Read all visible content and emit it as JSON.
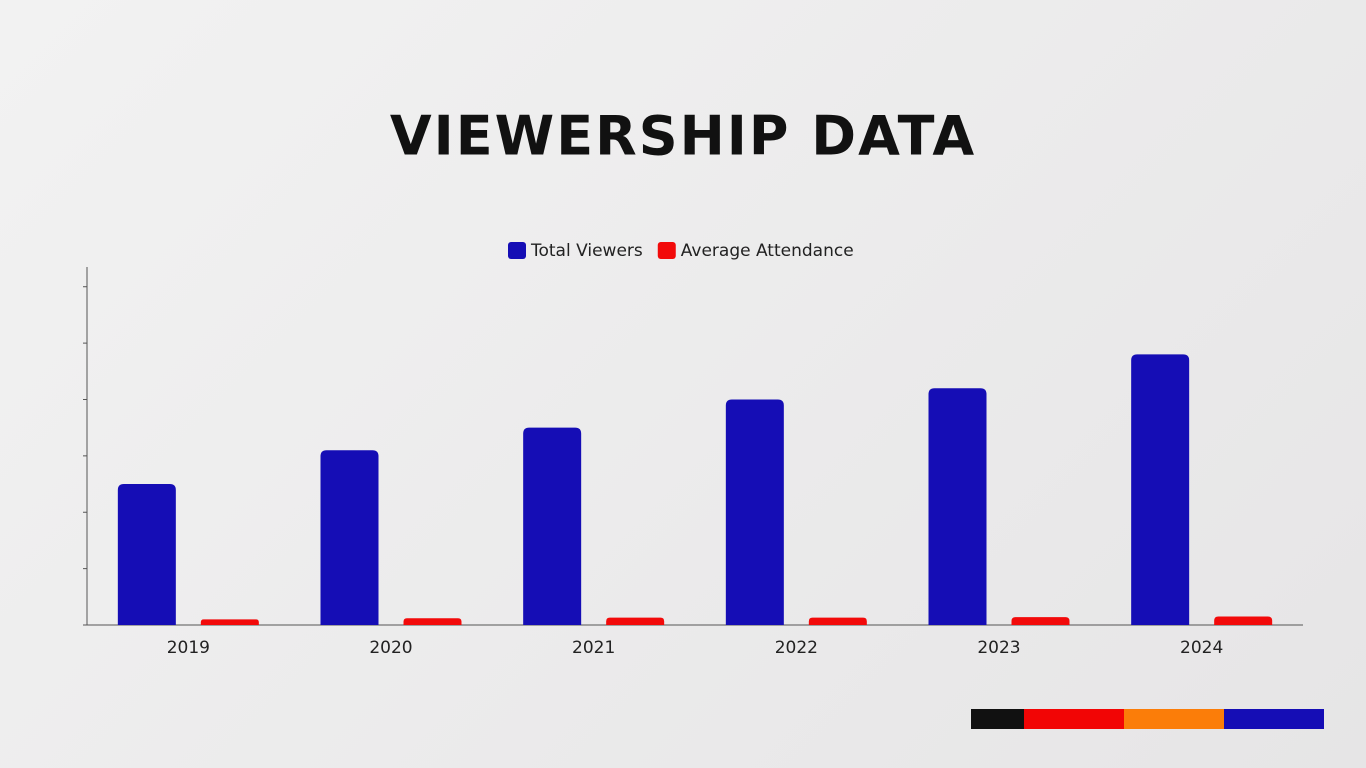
{
  "chart_data": {
    "type": "bar",
    "title": "VIEWERSHIP DATA",
    "categories": [
      "2019",
      "2020",
      "2021",
      "2022",
      "2023",
      "2024"
    ],
    "series": [
      {
        "name": "Total Viewers",
        "color": "#150db5",
        "values": [
          2.5,
          3.1,
          3.5,
          4.0,
          4.2,
          4.8
        ]
      },
      {
        "name": "Average Attendance",
        "color": "#f20a0a",
        "values": [
          0.1,
          0.12,
          0.13,
          0.13,
          0.14,
          0.15
        ]
      }
    ],
    "ylim": [
      0,
      6.35
    ],
    "yticks": [
      0,
      1,
      2,
      3,
      4,
      5,
      6
    ]
  }
}
